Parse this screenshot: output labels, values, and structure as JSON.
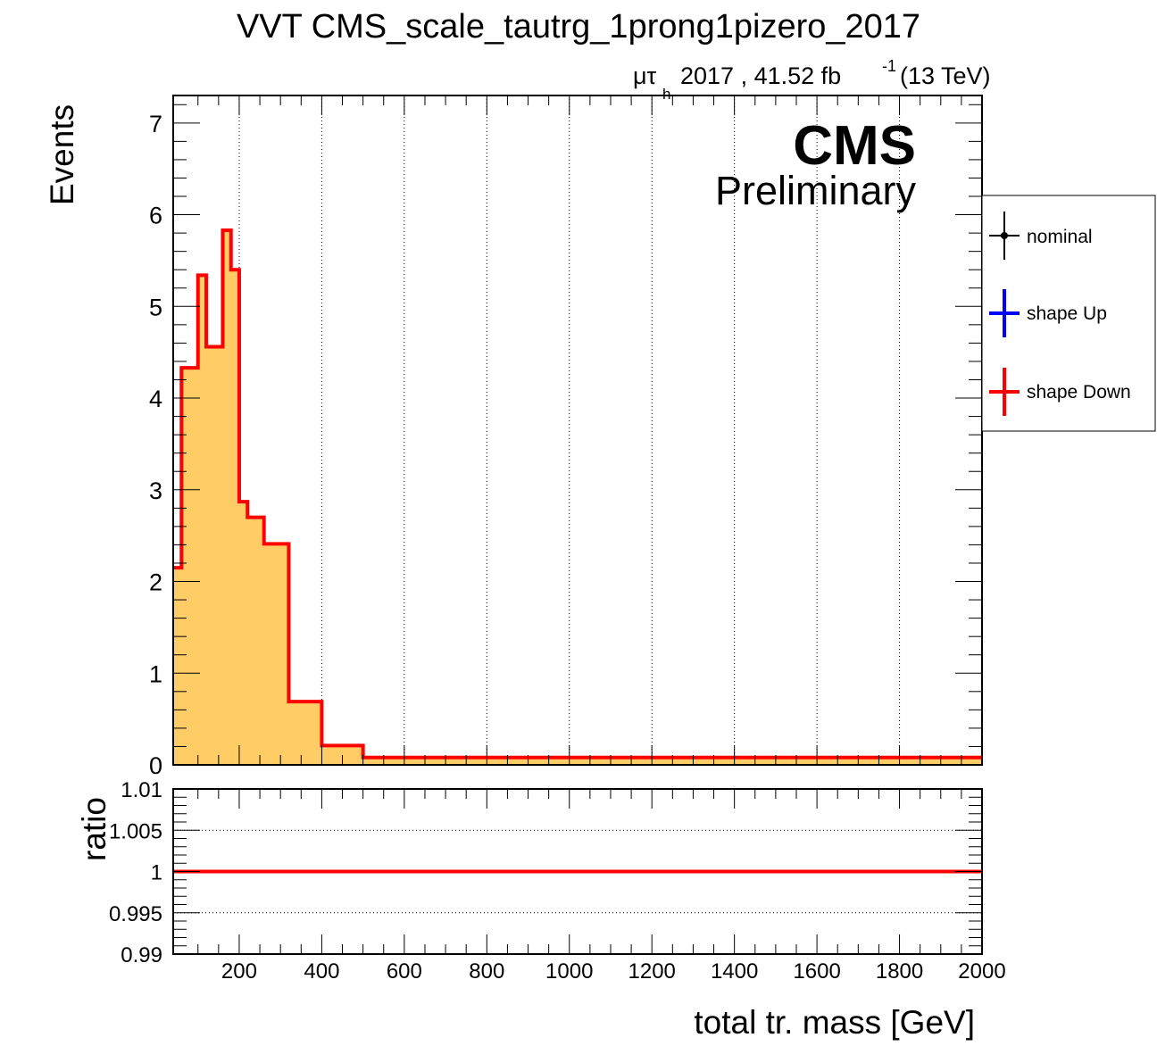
{
  "header": {
    "title": "VVT CMS_scale_tautrg_1prong1pizero_2017",
    "lumi": {
      "channel_mu": "μτ",
      "channel_sub": "h",
      "text": "2017 , 41.52 fb",
      "sup": "-1",
      "energy": "(13 TeV)"
    },
    "cms_label": "CMS",
    "preliminary_label": "Preliminary"
  },
  "legend": {
    "entries": [
      {
        "label": "nominal",
        "color": "#000000"
      },
      {
        "label": "shape Up",
        "color": "#0000ff"
      },
      {
        "label": "shape Down",
        "color": "#ff0000"
      }
    ]
  },
  "chart_data": [
    {
      "type": "histogram",
      "ylabel": "Events",
      "xlim": [
        40,
        2000
      ],
      "ylim": [
        0,
        7.3
      ],
      "yticks": [
        "0",
        "1",
        "2",
        "3",
        "4",
        "5",
        "6",
        "7"
      ],
      "grid_x": true,
      "fill_color": "#ffcc66",
      "line_color": "#ff0000",
      "bin_edges": [
        40,
        60,
        80,
        100,
        120,
        140,
        160,
        180,
        200,
        220,
        240,
        260,
        280,
        320,
        400,
        500,
        2000
      ],
      "series": [
        {
          "name": "shape Down",
          "values": [
            2.15,
            4.33,
            4.33,
            5.34,
            4.56,
            4.56,
            5.83,
            5.4,
            2.87,
            2.7,
            2.7,
            2.41,
            2.41,
            0.69,
            0.21,
            0.08
          ]
        }
      ]
    },
    {
      "type": "line",
      "ylabel": "ratio",
      "xlabel": "total tr. mass [GeV]",
      "xlim": [
        40,
        2000
      ],
      "ylim": [
        0.99,
        1.01
      ],
      "xticks": [
        "200",
        "400",
        "600",
        "800",
        "1000",
        "1200",
        "1400",
        "1600",
        "1800",
        "2000"
      ],
      "yticks": [
        "0.99",
        "0.995",
        "1",
        "1.005",
        "1.01"
      ],
      "grid_y": true,
      "series": [
        {
          "name": "shape Down",
          "x": [
            40,
            2000
          ],
          "values": [
            1,
            1
          ],
          "color": "#ff0000"
        }
      ]
    }
  ]
}
